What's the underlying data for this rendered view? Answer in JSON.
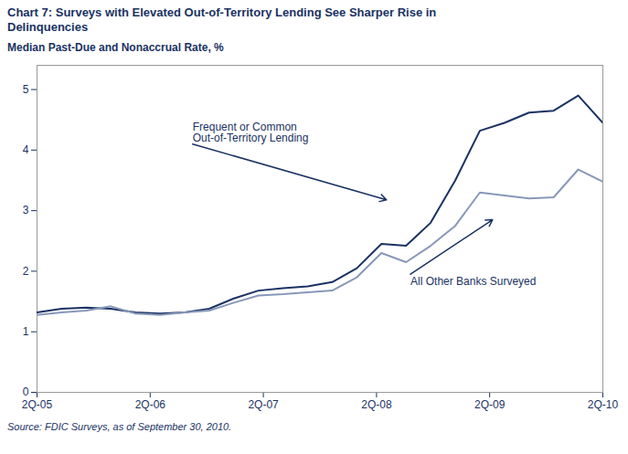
{
  "chart_data": {
    "type": "line",
    "title": "Chart 7: Surveys with Elevated Out-of-Territory Lending See Sharper Rise in\nDelinquencies",
    "ylabel": "Median Past-Due and Nonaccrual Rate, %",
    "source": "Source: FDIC Surveys, as of September 30, 2010.",
    "x": [
      0,
      0.8695652173913043,
      1.7391304347826086,
      2.608695652173913,
      3.4782608695652173,
      4.3478260869565215,
      5.217391304347826,
      6.086956521739131,
      6.956521739130435,
      7.826086956521739,
      8.695652173913043,
      9.565217391304348,
      10.434782608695652,
      11.304347826086957,
      12.173913043478262,
      13.043478260869565,
      13.91304347826087,
      14.782608695652174,
      15.652173913043478,
      16.52173913043478,
      17.391304347826086,
      18.26086956521739,
      19.130434782608695,
      20
    ],
    "series": [
      {
        "color": "#1a3263",
        "values": [
          1.32,
          1.38,
          1.4,
          1.38,
          1.32,
          1.3,
          1.32,
          1.38,
          1.55,
          1.68,
          1.72,
          1.75,
          1.82,
          2.05,
          2.45,
          2.42,
          2.8,
          3.5,
          4.32,
          4.45,
          4.62,
          4.65,
          4.9,
          4.45
        ]
      },
      {
        "color": "#8898b8",
        "values": [
          1.28,
          1.32,
          1.35,
          1.42,
          1.3,
          1.28,
          1.32,
          1.35,
          1.48,
          1.6,
          1.62,
          1.65,
          1.68,
          1.9,
          2.3,
          2.15,
          2.42,
          2.75,
          3.3,
          3.25,
          3.2,
          3.22,
          3.68,
          3.48
        ]
      }
    ],
    "xlim": [
      0,
      20
    ],
    "xticks": [
      {
        "value": 0,
        "label": "2Q-05"
      },
      {
        "value": 4,
        "label": "2Q-06"
      },
      {
        "value": 8,
        "label": "2Q-07"
      },
      {
        "value": 12,
        "label": "2Q-08"
      },
      {
        "value": 16,
        "label": "2Q-09"
      },
      {
        "value": 20,
        "label": "2Q-10"
      }
    ],
    "ylim": [
      0,
      5.4
    ],
    "yticks": [
      0,
      1,
      2,
      3,
      4,
      5
    ],
    "grid": false,
    "annotations": [
      {
        "text": "Frequent or Common\nOut-of-Territory Lending",
        "x": 12.35,
        "y": 3.18,
        "text_x": 5.5,
        "text_y": 4.1,
        "color": "#1a3263"
      },
      {
        "text": "All Other Banks Surveyed",
        "x": 16.1,
        "y": 2.85,
        "text_x": 13.2,
        "text_y": 1.95,
        "color": "#1a3263"
      }
    ]
  }
}
